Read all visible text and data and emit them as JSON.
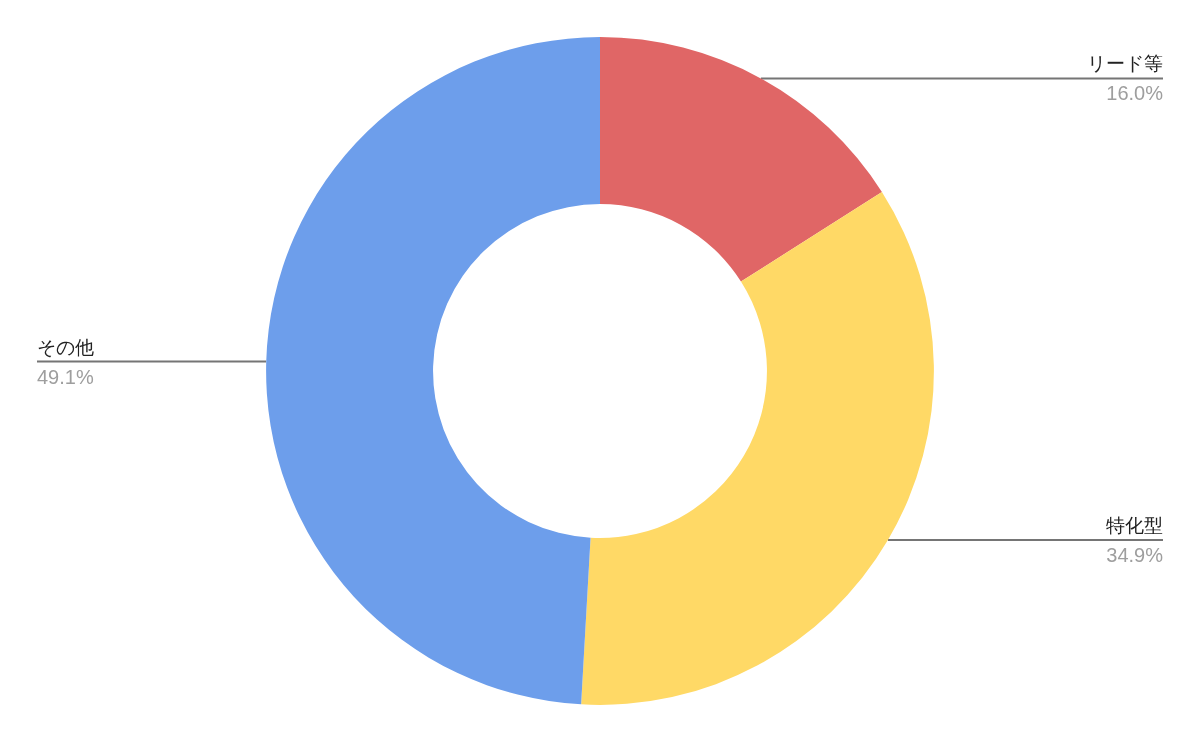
{
  "chart_data": {
    "type": "donut",
    "categories": [
      "リード等",
      "特化型",
      "その他"
    ],
    "values": [
      16.0,
      34.9,
      49.1
    ],
    "colors": [
      "#e06666",
      "#ffd966",
      "#6d9eeb"
    ],
    "value_labels": [
      "16.0%",
      "34.9%",
      "49.1%"
    ]
  }
}
